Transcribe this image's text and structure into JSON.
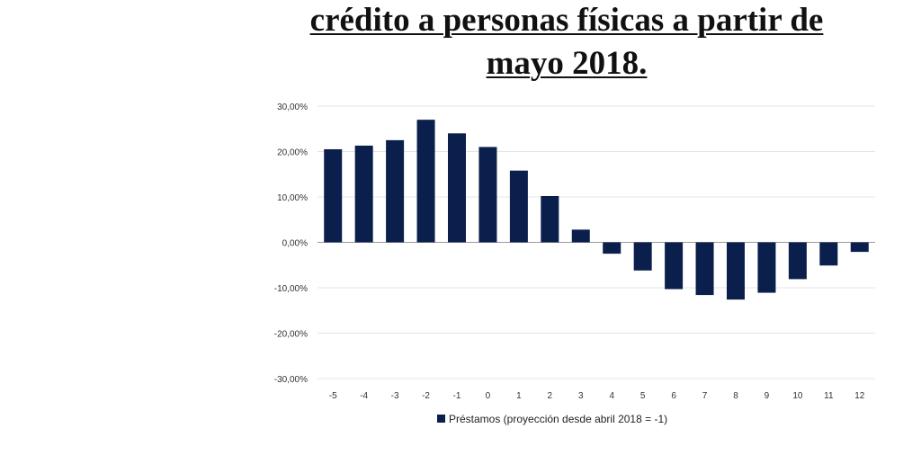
{
  "title": {
    "line1": "crédito a personas físicas a partir de",
    "line2": "mayo 2018."
  },
  "chart_data": {
    "type": "bar",
    "title": "crédito a personas físicas a partir de mayo 2018.",
    "xlabel": "",
    "ylabel": "",
    "categories": [
      "-5",
      "-4",
      "-3",
      "-2",
      "-1",
      "0",
      "1",
      "2",
      "3",
      "4",
      "5",
      "6",
      "7",
      "8",
      "9",
      "10",
      "11",
      "12"
    ],
    "series": [
      {
        "name": "Préstamos (proyección desde abril 2018 = -1)",
        "values": [
          20.5,
          21.3,
          22.5,
          27.0,
          24.0,
          21.0,
          15.8,
          10.2,
          2.8,
          -2.5,
          -6.2,
          -10.3,
          -11.6,
          -12.6,
          -11.1,
          -8.1,
          -5.1,
          -2.1
        ],
        "color": "#0b1f4d"
      }
    ],
    "ylim": [
      -30,
      30
    ],
    "yticks": [
      30,
      20,
      10,
      0,
      -10,
      -20,
      -30
    ],
    "ytick_labels": [
      "30,00%",
      "20,00%",
      "10,00%",
      "0,00%",
      "-10,00%",
      "-20,00%",
      "-30,00%"
    ],
    "grid": true,
    "legend": "bottom"
  }
}
